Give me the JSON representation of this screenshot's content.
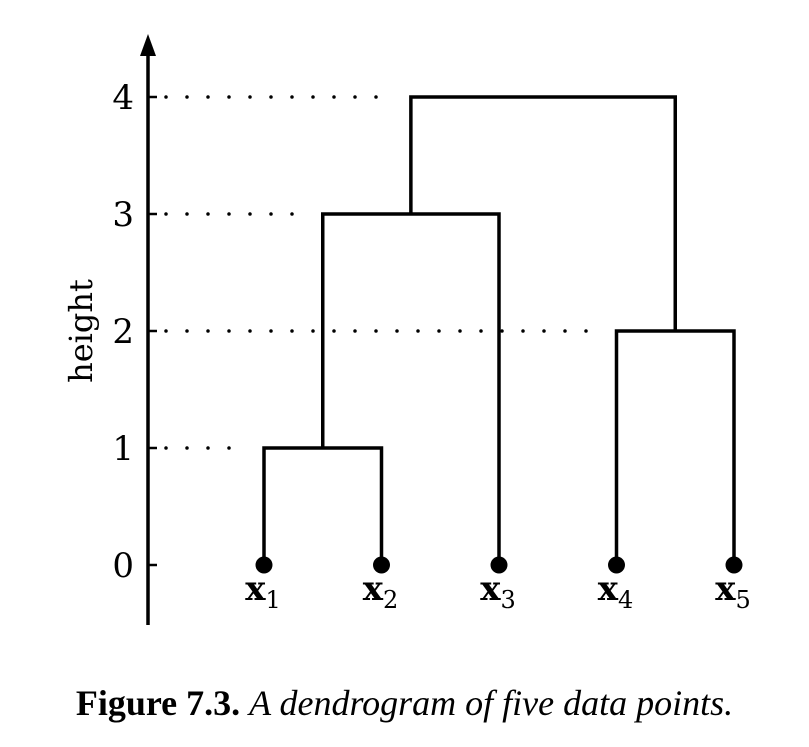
{
  "chart_data": {
    "type": "dendrogram",
    "ylabel": "height",
    "ylim": [
      0,
      4
    ],
    "yticks": [
      "0",
      "1",
      "2",
      "3",
      "4"
    ],
    "leaves": [
      {
        "base": "x",
        "sub": "1"
      },
      {
        "base": "x",
        "sub": "2"
      },
      {
        "base": "x",
        "sub": "3"
      },
      {
        "base": "x",
        "sub": "4"
      },
      {
        "base": "x",
        "sub": "5"
      }
    ],
    "merges": [
      {
        "left": "x1",
        "right": "x2",
        "height": 1
      },
      {
        "left": "x4",
        "right": "x5",
        "height": 2
      },
      {
        "left": "x1,x2",
        "right": "x3",
        "height": 3
      },
      {
        "left": "x1,x2,x3",
        "right": "x4,x5",
        "height": 4
      }
    ],
    "reference_lines": [
      1,
      2,
      3,
      4
    ],
    "color": "#000000"
  },
  "caption": {
    "label": "Figure 7.3.",
    "text": "A dendrogram of five data points."
  }
}
